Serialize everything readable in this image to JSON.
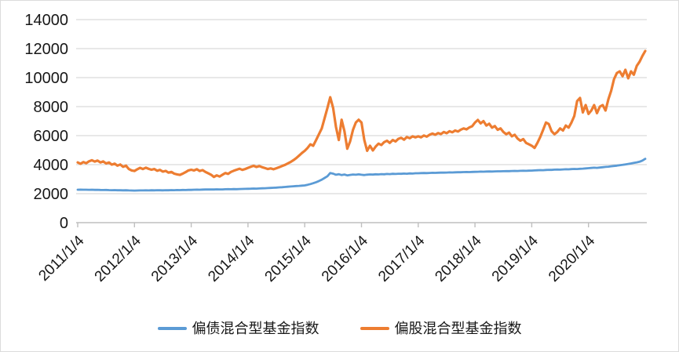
{
  "chart_data": {
    "type": "line",
    "title": "",
    "xlabel": "",
    "ylabel": "",
    "grid": true,
    "legend_position": "bottom",
    "y_axis": {
      "min": 0,
      "max": 14000,
      "ticks": [
        0,
        2000,
        4000,
        6000,
        8000,
        10000,
        12000,
        14000
      ]
    },
    "x_axis": {
      "tick_labels": [
        "2011/1/4",
        "2012/1/4",
        "2013/1/4",
        "2014/1/4",
        "2015/1/4",
        "2016/1/4",
        "2017/1/4",
        "2018/1/4",
        "2019/1/4",
        "2020/1/4"
      ],
      "tick_years": [
        2011,
        2012,
        2013,
        2014,
        2015,
        2016,
        2017,
        2018,
        2019,
        2020
      ],
      "range_years": [
        2011,
        2021
      ]
    },
    "t_start": 2011.0,
    "t_step": 0.05,
    "series": [
      {
        "name": "偏债混合型基金指数",
        "color": "#5B9BD5",
        "stroke_width": 2.8,
        "values": [
          2270,
          2275,
          2268,
          2272,
          2265,
          2270,
          2260,
          2265,
          2255,
          2250,
          2255,
          2245,
          2240,
          2245,
          2235,
          2230,
          2225,
          2230,
          2220,
          2215,
          2210,
          2216,
          2224,
          2220,
          2228,
          2224,
          2232,
          2228,
          2236,
          2232,
          2228,
          2238,
          2234,
          2242,
          2238,
          2248,
          2244,
          2252,
          2248,
          2258,
          2262,
          2268,
          2276,
          2272,
          2282,
          2288,
          2284,
          2292,
          2288,
          2298,
          2294,
          2290,
          2300,
          2308,
          2304,
          2314,
          2310,
          2320,
          2326,
          2332,
          2336,
          2342,
          2350,
          2346,
          2356,
          2365,
          2375,
          2385,
          2395,
          2405,
          2418,
          2430,
          2445,
          2460,
          2476,
          2492,
          2508,
          2522,
          2536,
          2552,
          2570,
          2610,
          2660,
          2720,
          2790,
          2870,
          2960,
          3080,
          3200,
          3420,
          3380,
          3300,
          3340,
          3280,
          3320,
          3260,
          3290,
          3320,
          3300,
          3330,
          3300,
          3280,
          3310,
          3325,
          3315,
          3335,
          3325,
          3345,
          3335,
          3355,
          3345,
          3365,
          3355,
          3375,
          3365,
          3385,
          3375,
          3395,
          3385,
          3405,
          3408,
          3415,
          3422,
          3418,
          3428,
          3436,
          3432,
          3442,
          3450,
          3446,
          3456,
          3464,
          3460,
          3470,
          3478,
          3474,
          3484,
          3492,
          3488,
          3498,
          3502,
          3510,
          3518,
          3514,
          3524,
          3530,
          3526,
          3536,
          3542,
          3538,
          3548,
          3554,
          3550,
          3560,
          3566,
          3562,
          3572,
          3578,
          3574,
          3584,
          3590,
          3600,
          3612,
          3622,
          3616,
          3632,
          3642,
          3636,
          3652,
          3662,
          3656,
          3672,
          3682,
          3676,
          3692,
          3702,
          3696,
          3712,
          3726,
          3742,
          3756,
          3772,
          3790,
          3780,
          3802,
          3822,
          3842,
          3862,
          3884,
          3908,
          3932,
          3958,
          3986,
          4016,
          4048,
          4082,
          4118,
          4156,
          4200,
          4280,
          4400
        ]
      },
      {
        "name": "偏股混合型基金指数",
        "color": "#ED7D31",
        "stroke_width": 3.2,
        "values": [
          4150,
          4060,
          4180,
          4100,
          4230,
          4300,
          4210,
          4280,
          4150,
          4220,
          4080,
          4150,
          4000,
          4070,
          3930,
          4010,
          3850,
          3930,
          3700,
          3600,
          3560,
          3680,
          3780,
          3700,
          3790,
          3710,
          3650,
          3700,
          3580,
          3640,
          3520,
          3570,
          3450,
          3500,
          3380,
          3330,
          3290,
          3380,
          3480,
          3600,
          3650,
          3600,
          3680,
          3560,
          3620,
          3500,
          3400,
          3300,
          3150,
          3260,
          3180,
          3300,
          3420,
          3360,
          3500,
          3580,
          3650,
          3720,
          3640,
          3700,
          3780,
          3850,
          3920,
          3840,
          3900,
          3820,
          3760,
          3700,
          3740,
          3680,
          3750,
          3820,
          3900,
          3980,
          4080,
          4180,
          4300,
          4450,
          4620,
          4800,
          4950,
          5150,
          5400,
          5300,
          5700,
          6100,
          6500,
          7200,
          7900,
          8650,
          7900,
          6600,
          5700,
          7100,
          6300,
          5100,
          5600,
          6400,
          6900,
          7100,
          6900,
          5700,
          4950,
          5300,
          4980,
          5250,
          5450,
          5350,
          5550,
          5650,
          5500,
          5700,
          5600,
          5780,
          5850,
          5720,
          5900,
          5820,
          5950,
          5880,
          5950,
          5880,
          6010,
          5930,
          6060,
          6140,
          6060,
          6180,
          6110,
          6250,
          6170,
          6300,
          6230,
          6350,
          6280,
          6410,
          6500,
          6430,
          6560,
          6650,
          6900,
          7080,
          6850,
          7000,
          6700,
          6820,
          6550,
          6660,
          6400,
          6500,
          6250,
          6100,
          6210,
          5950,
          6060,
          5800,
          5650,
          5760,
          5500,
          5400,
          5300,
          5150,
          5500,
          5900,
          6400,
          6900,
          6800,
          6300,
          6100,
          6250,
          6500,
          6350,
          6700,
          6550,
          6900,
          7350,
          8380,
          8600,
          7600,
          8110,
          7500,
          7730,
          8110,
          7550,
          8000,
          8110,
          7730,
          8500,
          9100,
          9890,
          10320,
          10430,
          10100,
          10540,
          9950,
          10430,
          10200,
          10810,
          11100,
          11500,
          11840
        ]
      }
    ],
    "colors": {
      "gridline": "#D9D9D9",
      "axis": "#BFBFBF",
      "label": "#171717",
      "background": "#FFFFFF"
    }
  },
  "legend": {
    "items": [
      {
        "label": "偏债混合型基金指数",
        "color": "#5B9BD5"
      },
      {
        "label": "偏股混合型基金指数",
        "color": "#ED7D31"
      }
    ]
  }
}
